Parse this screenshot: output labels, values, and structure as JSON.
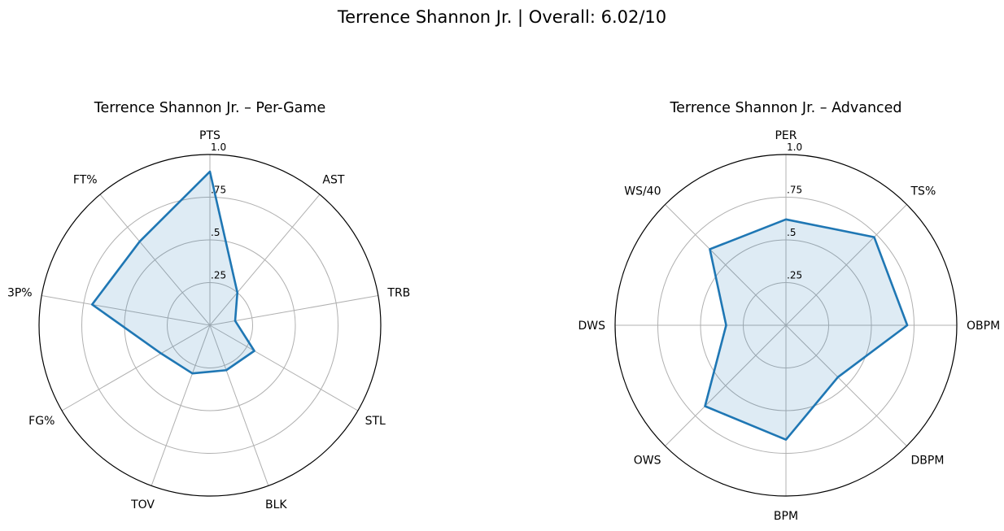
{
  "figure": {
    "title": "Terrence Shannon Jr. | Overall: 6.02/10"
  },
  "style": {
    "line_color": "#1f77b4",
    "fill_color": "#1f77b4",
    "grid_color": "#b0b0b0",
    "frame_color": "#000000"
  },
  "chart_data": [
    {
      "type": "radar",
      "title": "Terrence Shannon Jr. – Per-Game",
      "axes": [
        "PTS",
        "AST",
        "TRB",
        "STL",
        "BLK",
        "TOV",
        "FG%",
        "3P%",
        "FT%"
      ],
      "values": [
        0.9,
        0.25,
        0.15,
        0.3,
        0.28,
        0.3,
        0.33,
        0.7,
        0.64
      ],
      "rlim": [
        0,
        1.0
      ],
      "rticks": [
        0.25,
        0.5,
        0.75,
        1.0
      ],
      "rtick_labels": [
        ".25",
        ".5",
        ".75",
        "1.0"
      ],
      "grid": true
    },
    {
      "type": "radar",
      "title": "Terrence Shannon Jr. – Advanced",
      "axes": [
        "PER",
        "TS%",
        "OBPM",
        "DBPM",
        "BPM",
        "OWS",
        "DWS",
        "WS/40"
      ],
      "values": [
        0.62,
        0.73,
        0.71,
        0.43,
        0.67,
        0.67,
        0.35,
        0.63
      ],
      "rlim": [
        0,
        1.0
      ],
      "rticks": [
        0.25,
        0.5,
        0.75,
        1.0
      ],
      "rtick_labels": [
        ".25",
        ".5",
        ".75",
        "1.0"
      ],
      "grid": true
    }
  ]
}
